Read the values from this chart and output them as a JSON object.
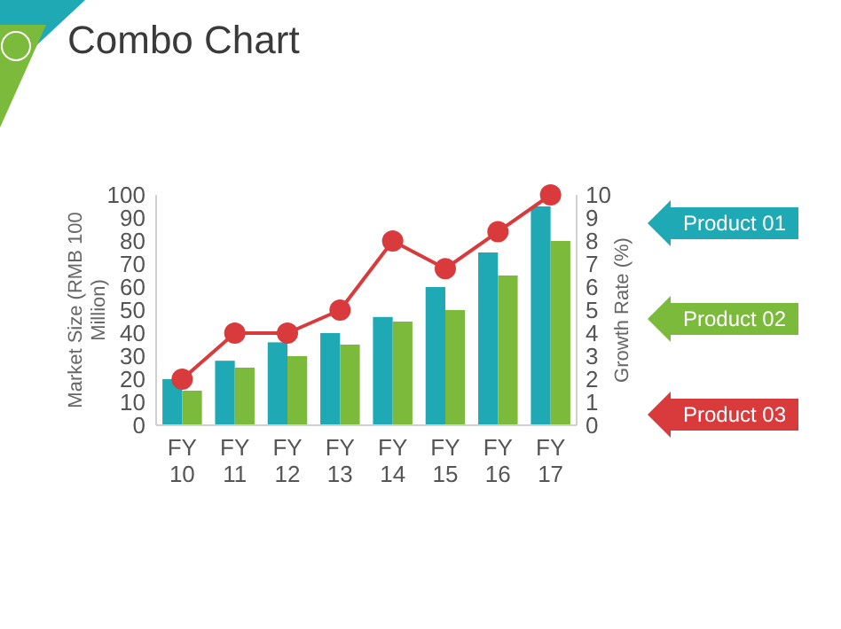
{
  "chart_data": {
    "type": "bar",
    "title": "Combo Chart",
    "ylabel": "Market Size (RMB 100 Million)",
    "y2label": "Growth Rate (%)",
    "categories": [
      "FY 10",
      "FY 11",
      "FY 12",
      "FY 13",
      "FY 14",
      "FY 15",
      "FY 16",
      "FY 17"
    ],
    "series": [
      {
        "name": "Product 01",
        "color": "#1fa9b5",
        "values": [
          20,
          28,
          36,
          40,
          47,
          60,
          75,
          95
        ]
      },
      {
        "name": "Product 02",
        "color": "#7cba3b",
        "values": [
          15,
          25,
          30,
          35,
          45,
          50,
          65,
          80
        ]
      },
      {
        "name": "Product 03",
        "color": "#d93a3c",
        "type": "line",
        "axis": "y2",
        "marker": "circle",
        "values": [
          2,
          4,
          4,
          5,
          8,
          6.8,
          8.4,
          10
        ]
      }
    ],
    "ylim": [
      0,
      100
    ],
    "yticks": [
      0,
      10,
      20,
      30,
      40,
      50,
      60,
      70,
      80,
      90,
      100
    ],
    "y2lim": [
      0,
      10
    ],
    "y2ticks": [
      0,
      1,
      2,
      3,
      4,
      5,
      6,
      7,
      8,
      9,
      10
    ],
    "legend": "right",
    "grid": false
  }
}
